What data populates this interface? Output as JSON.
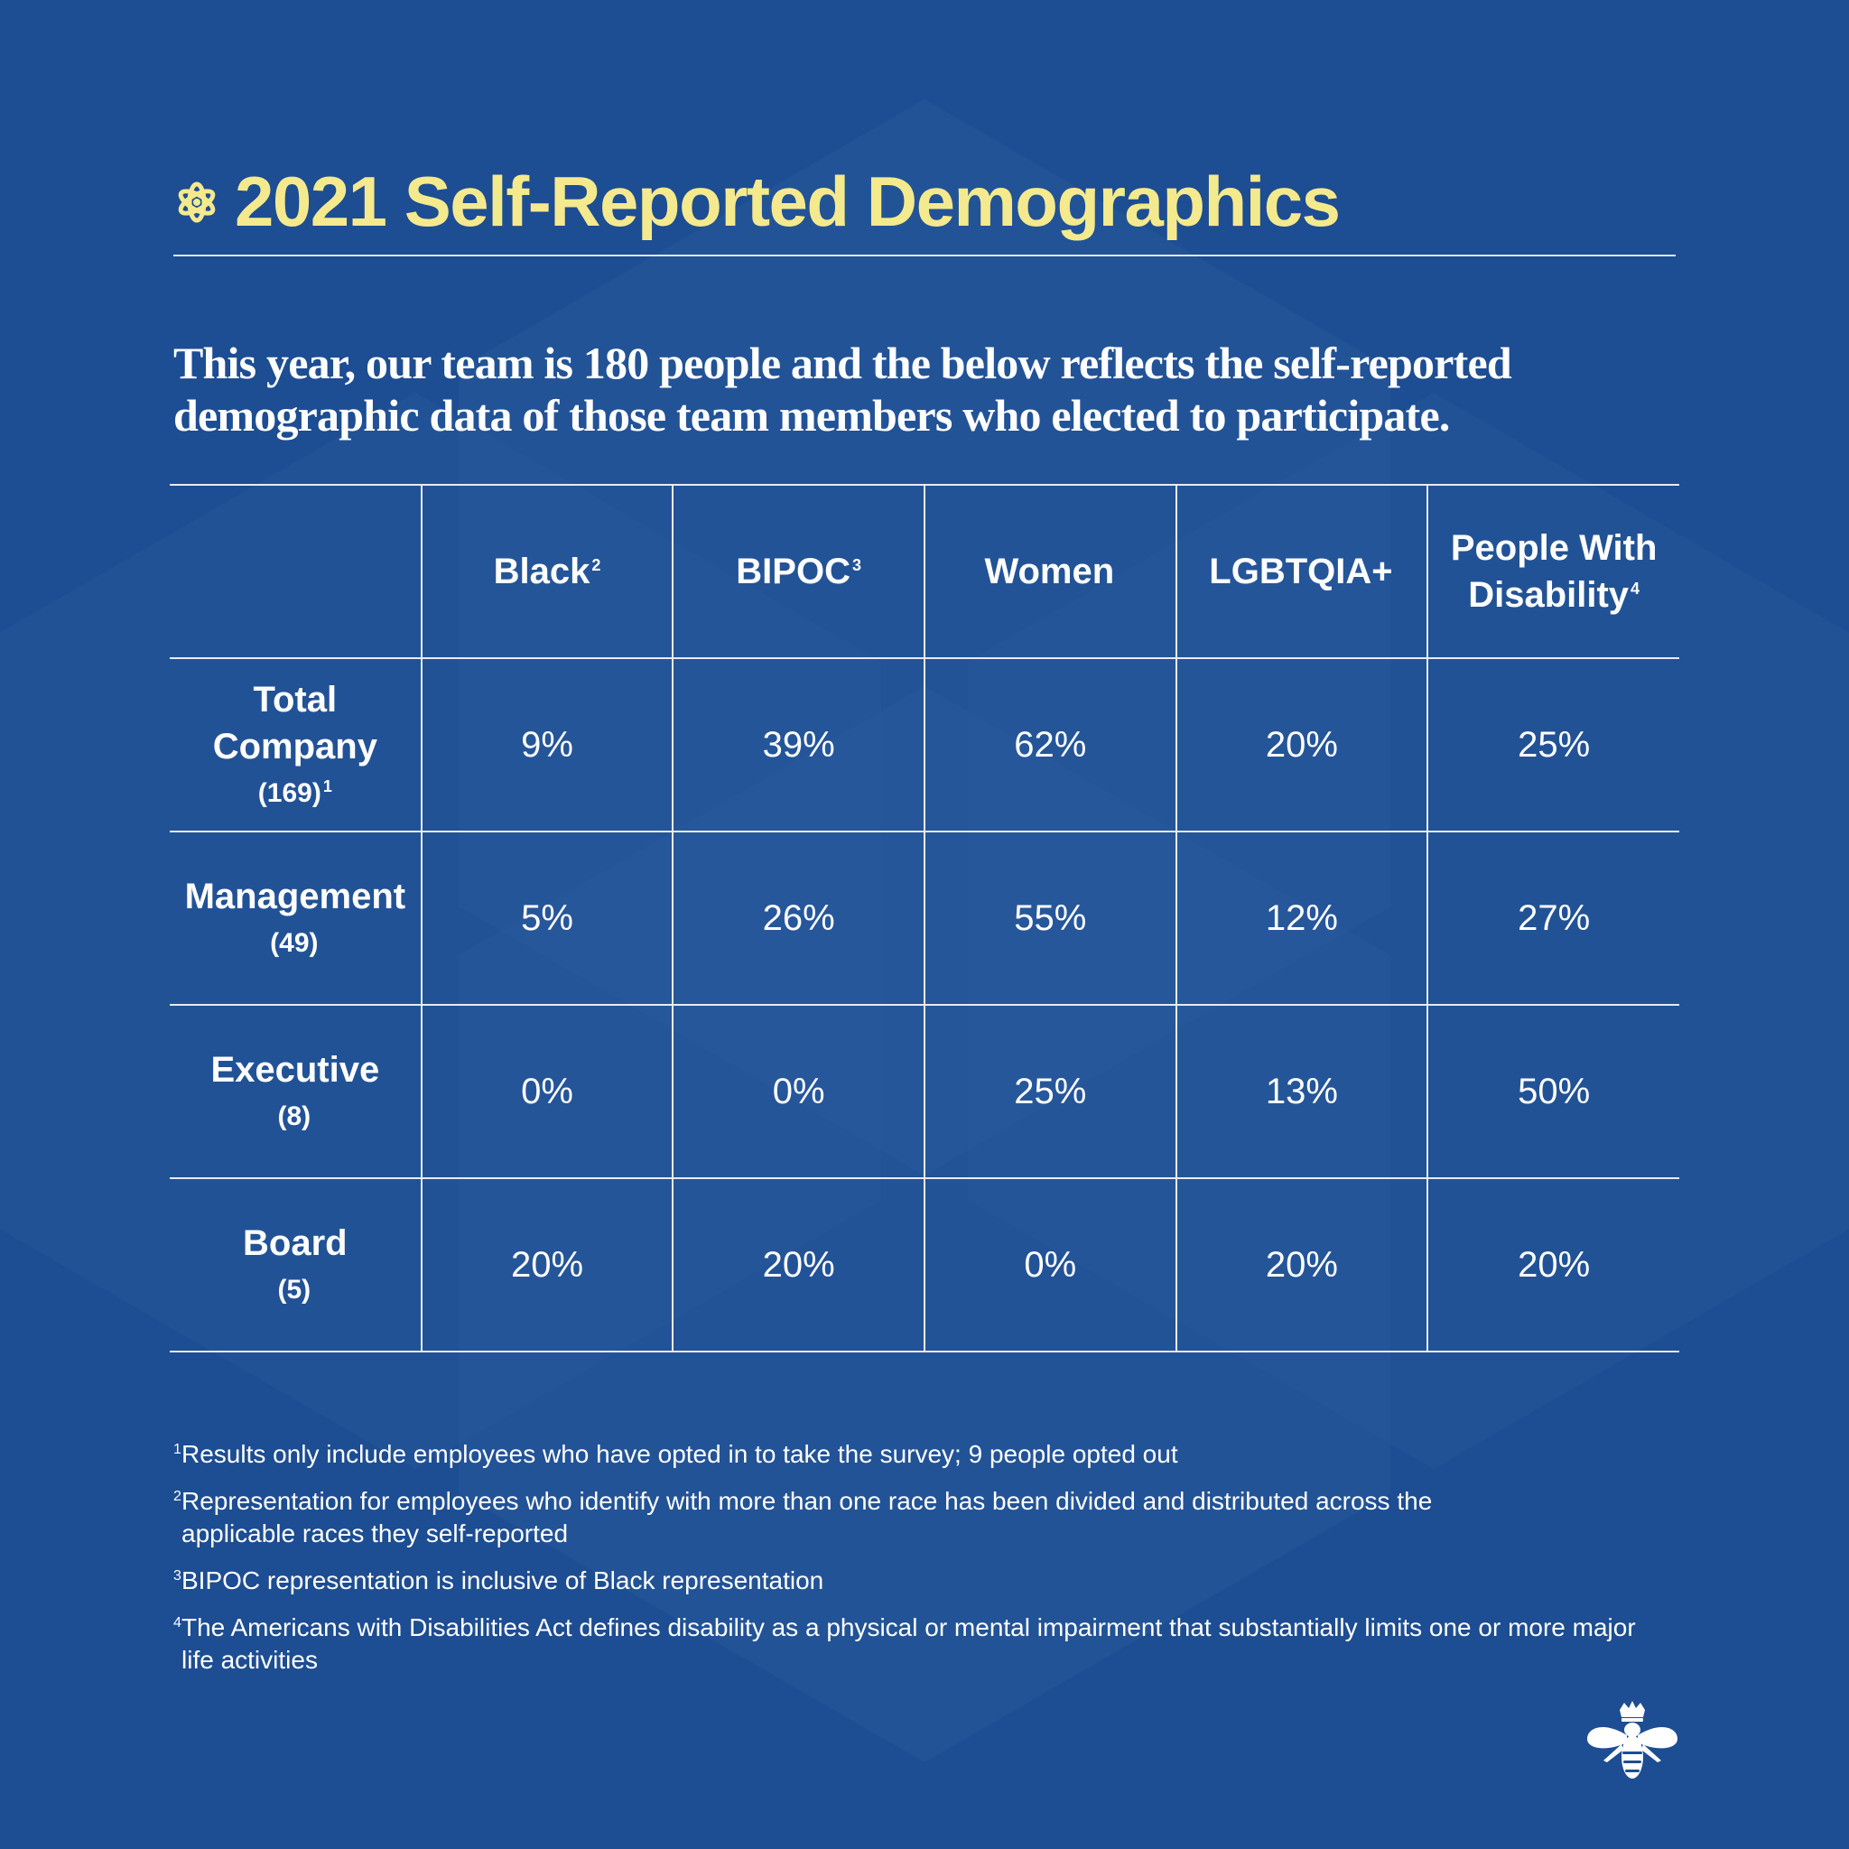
{
  "header": {
    "title": "2021 Self-Reported Demographics",
    "icon": "flower-icon",
    "accent_color": "#f4e98d"
  },
  "intro": {
    "text": "This year, our team is 180 people and the below reflects the self-reported demographic data of those team members who elected to participate."
  },
  "chart_data": {
    "type": "table",
    "title": "2021 Self-Reported Demographics",
    "columns": [
      {
        "label": "Black",
        "footnote": "2"
      },
      {
        "label": "BIPOC",
        "footnote": "3"
      },
      {
        "label": "Women",
        "footnote": ""
      },
      {
        "label": "LGBTQIA+",
        "footnote": ""
      },
      {
        "label": "People With Disability",
        "footnote": "4"
      }
    ],
    "rows": [
      {
        "label": "Total Company",
        "count": "(169)",
        "footnote": "1",
        "values": [
          "9%",
          "39%",
          "62%",
          "20%",
          "25%"
        ]
      },
      {
        "label": "Management",
        "count": "(49)",
        "footnote": "",
        "values": [
          "5%",
          "26%",
          "55%",
          "12%",
          "27%"
        ]
      },
      {
        "label": "Executive",
        "count": "(8)",
        "footnote": "",
        "values": [
          "0%",
          "0%",
          "25%",
          "13%",
          "50%"
        ]
      },
      {
        "label": "Board",
        "count": "(5)",
        "footnote": "",
        "values": [
          "20%",
          "20%",
          "0%",
          "20%",
          "20%"
        ]
      }
    ]
  },
  "footnotes": [
    {
      "mark": "1",
      "text": "Results only include employees who have opted in to take the survey; 9 people opted out"
    },
    {
      "mark": "2",
      "text": "Representation for employees who identify with more than one race has been divided and distributed across the applicable races they self-reported"
    },
    {
      "mark": "3",
      "text": "BIPOC representation is inclusive of Black representation"
    },
    {
      "mark": "4",
      "text": "The Americans with Disabilities Act defines disability as a physical or mental impairment that substantially limits one or more major life activities"
    }
  ],
  "logo": {
    "icon": "crowned-bee-icon"
  },
  "colors": {
    "background": "#1d4d92",
    "decor": "#2a5a9d",
    "text": "#ffffff",
    "rule": "#e6ecf6"
  }
}
